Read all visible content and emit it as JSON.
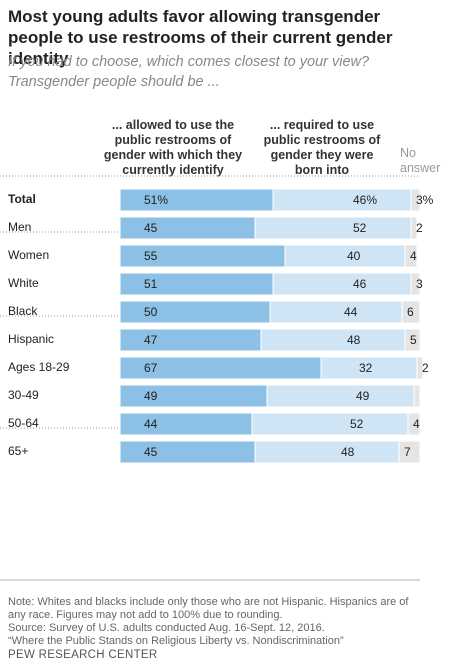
{
  "chart_data": {
    "type": "bar",
    "orientation": "horizontal",
    "stacked": true,
    "title": "Most young adults favor allowing transgender people to use restrooms of their current gender identity",
    "subtitle": "If you had to choose, which comes closest to your view? Transgender people should be ...",
    "categories": [
      "Total",
      "Men",
      "Women",
      "White",
      "Black",
      "Hispanic",
      "Ages 18-29",
      "30-49",
      "50-64",
      "65+"
    ],
    "groups": [
      [
        0
      ],
      [
        1,
        2
      ],
      [
        3,
        4,
        5
      ],
      [
        6,
        7,
        8,
        9
      ]
    ],
    "xlim": [
      0,
      100
    ],
    "series": [
      {
        "name": "... allowed to use the public restrooms of gender with which they currently identify",
        "color": "#8cc0e4",
        "values": [
          51,
          45,
          55,
          51,
          50,
          47,
          67,
          49,
          44,
          45
        ],
        "value_labels": [
          "51%",
          "45",
          "55",
          "51",
          "50",
          "47",
          "67",
          "49",
          "44",
          "45"
        ]
      },
      {
        "name": "... required to use public restrooms of gender they were born into",
        "color": "#cfe4f4",
        "values": [
          46,
          52,
          40,
          46,
          44,
          48,
          32,
          49,
          52,
          48
        ],
        "value_labels": [
          "46%",
          "52",
          "40",
          "46",
          "44",
          "48",
          "32",
          "49",
          "52",
          "48"
        ]
      },
      {
        "name": "No answer",
        "color": "#e4e4e4",
        "values": [
          3,
          2,
          4,
          3,
          6,
          5,
          2,
          2,
          4,
          7
        ],
        "value_labels": [
          "3%",
          "2",
          "4",
          "3",
          "6",
          "5",
          "2",
          null,
          "4",
          "7"
        ]
      }
    ],
    "note": "Note: Whites and blacks include only those who are not Hispanic. Hispanics are of any race. Figures may not add to 100% due to rounding.",
    "source": "Source: Survey of U.S. adults conducted Aug. 16-Sept. 12, 2016.",
    "report": "“Where the Public Stands on Religious Liberty vs. Nondiscrimination”",
    "footer": "PEW RESEARCH CENTER"
  }
}
